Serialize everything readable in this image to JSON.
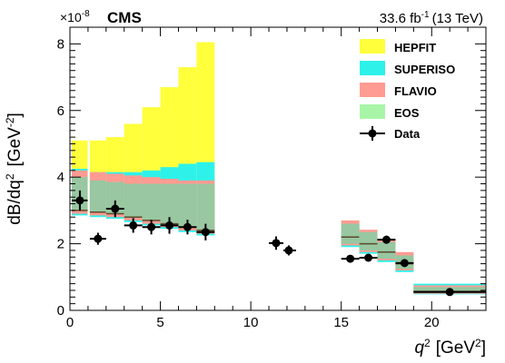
{
  "chart_data": {
    "type": "bar",
    "experiment": "CMS",
    "lumi_label": "33.6 fb",
    "lumi_exp": "-1",
    "energy_label": "(13 TeV)",
    "y_multiplier": "×10",
    "y_multiplier_exp": "-8",
    "ylabel_main": "dB/dq",
    "ylabel_sup": "2",
    "ylabel_unit": "[GeV",
    "ylabel_unit_exp": "-2",
    "ylabel_close": "]",
    "xlabel_main": "q",
    "xlabel_sup": "2",
    "xlabel_unit": "[GeV",
    "xlabel_unit_exp": "2",
    "xlabel_close": "]",
    "xlim": [
      0,
      23
    ],
    "ylim": [
      0,
      8.5
    ],
    "xticks": [
      0,
      5,
      10,
      15,
      20
    ],
    "yticks": [
      0,
      2,
      4,
      6,
      8
    ],
    "colors": {
      "HEPFIT": "#ffff3c",
      "SUPERISO": "#2ef2ea",
      "FLAVIO": "#ff9b92",
      "EOS": "#a8f5a8",
      "overlap": "#8aa09a",
      "data": "#000000"
    },
    "legend_position": "top-right",
    "legend": [
      "HEPFIT",
      "SUPERISO",
      "FLAVIO",
      "EOS",
      "Data"
    ],
    "theory_bins": [
      {
        "lo": 0.1,
        "hi": 0.98,
        "hepfit": [
          2.9,
          5.1
        ],
        "superiso": [
          2.85,
          4.25
        ],
        "flavio": [
          2.9,
          4.2
        ],
        "eos": [
          3.0,
          4.0
        ],
        "central": 3.0
      },
      {
        "lo": 1.1,
        "hi": 2.0,
        "hepfit": [
          2.85,
          5.1
        ],
        "superiso": [
          2.8,
          4.15
        ],
        "flavio": [
          2.85,
          4.15
        ],
        "eos": [
          2.95,
          3.9
        ],
        "central": 2.95
      },
      {
        "lo": 2.0,
        "hi": 3.0,
        "hepfit": [
          2.8,
          5.2
        ],
        "superiso": [
          2.75,
          4.15
        ],
        "flavio": [
          2.8,
          4.1
        ],
        "eos": [
          2.9,
          3.85
        ],
        "central": 2.9
      },
      {
        "lo": 3.0,
        "hi": 4.0,
        "hepfit": [
          2.7,
          5.6
        ],
        "superiso": [
          2.65,
          4.15
        ],
        "flavio": [
          2.7,
          4.05
        ],
        "eos": [
          2.8,
          3.8
        ],
        "central": 2.8
      },
      {
        "lo": 4.0,
        "hi": 5.0,
        "hepfit": [
          2.6,
          6.1
        ],
        "superiso": [
          2.55,
          4.2
        ],
        "flavio": [
          2.6,
          4.0
        ],
        "eos": [
          2.7,
          3.8
        ],
        "central": 2.7
      },
      {
        "lo": 5.0,
        "hi": 6.0,
        "hepfit": [
          2.5,
          6.7
        ],
        "superiso": [
          2.45,
          4.3
        ],
        "flavio": [
          2.5,
          3.95
        ],
        "eos": [
          2.6,
          3.8
        ],
        "central": 2.6
      },
      {
        "lo": 6.0,
        "hi": 7.0,
        "hepfit": [
          2.4,
          7.3
        ],
        "superiso": [
          2.35,
          4.4
        ],
        "flavio": [
          2.4,
          3.9
        ],
        "eos": [
          2.5,
          3.8
        ],
        "central": 2.5
      },
      {
        "lo": 7.0,
        "hi": 8.0,
        "hepfit": [
          2.3,
          8.05
        ],
        "superiso": [
          2.25,
          4.45
        ],
        "flavio": [
          2.3,
          3.9
        ],
        "eos": [
          2.4,
          3.8
        ],
        "central": 2.4
      },
      {
        "lo": 15.0,
        "hi": 16.0,
        "hepfit": [
          1.95,
          2.55
        ],
        "superiso": [
          1.9,
          2.6
        ],
        "flavio": [
          1.95,
          2.7
        ],
        "eos": [
          2.0,
          2.6
        ],
        "central": 2.2
      },
      {
        "lo": 16.0,
        "hi": 17.0,
        "hepfit": [
          1.75,
          2.3
        ],
        "superiso": [
          1.7,
          2.35
        ],
        "flavio": [
          1.75,
          2.42
        ],
        "eos": [
          1.8,
          2.35
        ],
        "central": 2.0
      },
      {
        "lo": 17.0,
        "hi": 18.0,
        "hepfit": [
          1.5,
          2.05
        ],
        "superiso": [
          1.45,
          2.1
        ],
        "flavio": [
          1.5,
          2.15
        ],
        "eos": [
          1.55,
          2.05
        ],
        "central": 1.75
      },
      {
        "lo": 18.0,
        "hi": 19.0,
        "hepfit": [
          1.2,
          1.65
        ],
        "superiso": [
          1.15,
          1.7
        ],
        "flavio": [
          1.2,
          1.75
        ],
        "eos": [
          1.25,
          1.65
        ],
        "central": 1.4
      },
      {
        "lo": 19.0,
        "hi": 23.0,
        "hepfit": [
          0.5,
          0.7
        ],
        "superiso": [
          0.48,
          0.8
        ],
        "flavio": [
          0.5,
          0.75
        ],
        "eos": [
          0.55,
          0.7
        ],
        "central": 0.57
      }
    ],
    "data_points": [
      {
        "x": 0.55,
        "xlo": 0.1,
        "xhi": 0.98,
        "y": 3.3,
        "err": 0.3
      },
      {
        "x": 1.55,
        "xlo": 1.1,
        "xhi": 2.0,
        "y": 2.15,
        "err": 0.18
      },
      {
        "x": 2.5,
        "xlo": 2.0,
        "xhi": 3.0,
        "y": 3.05,
        "err": 0.25
      },
      {
        "x": 3.5,
        "xlo": 3.0,
        "xhi": 4.0,
        "y": 2.55,
        "err": 0.22
      },
      {
        "x": 4.5,
        "xlo": 4.0,
        "xhi": 5.0,
        "y": 2.5,
        "err": 0.22
      },
      {
        "x": 5.5,
        "xlo": 5.0,
        "xhi": 6.0,
        "y": 2.55,
        "err": 0.25
      },
      {
        "x": 6.5,
        "xlo": 6.0,
        "xhi": 7.0,
        "y": 2.5,
        "err": 0.22
      },
      {
        "x": 7.5,
        "xlo": 7.0,
        "xhi": 8.0,
        "y": 2.35,
        "err": 0.25
      },
      {
        "x": 11.4,
        "xlo": 11.0,
        "xhi": 11.8,
        "y": 2.02,
        "err": 0.2
      },
      {
        "x": 12.1,
        "xlo": 11.8,
        "xhi": 12.5,
        "y": 1.8,
        "err": 0.15
      },
      {
        "x": 15.5,
        "xlo": 15.0,
        "xhi": 16.0,
        "y": 1.55,
        "err": 0.07
      },
      {
        "x": 16.5,
        "xlo": 16.0,
        "xhi": 17.0,
        "y": 1.58,
        "err": 0.1
      },
      {
        "x": 17.5,
        "xlo": 17.0,
        "xhi": 18.0,
        "y": 2.12,
        "err": 0.12
      },
      {
        "x": 18.5,
        "xlo": 18.0,
        "xhi": 19.0,
        "y": 1.42,
        "err": 0.07
      },
      {
        "x": 21.0,
        "xlo": 19.0,
        "xhi": 23.0,
        "y": 0.55,
        "err": 0.04
      }
    ]
  }
}
